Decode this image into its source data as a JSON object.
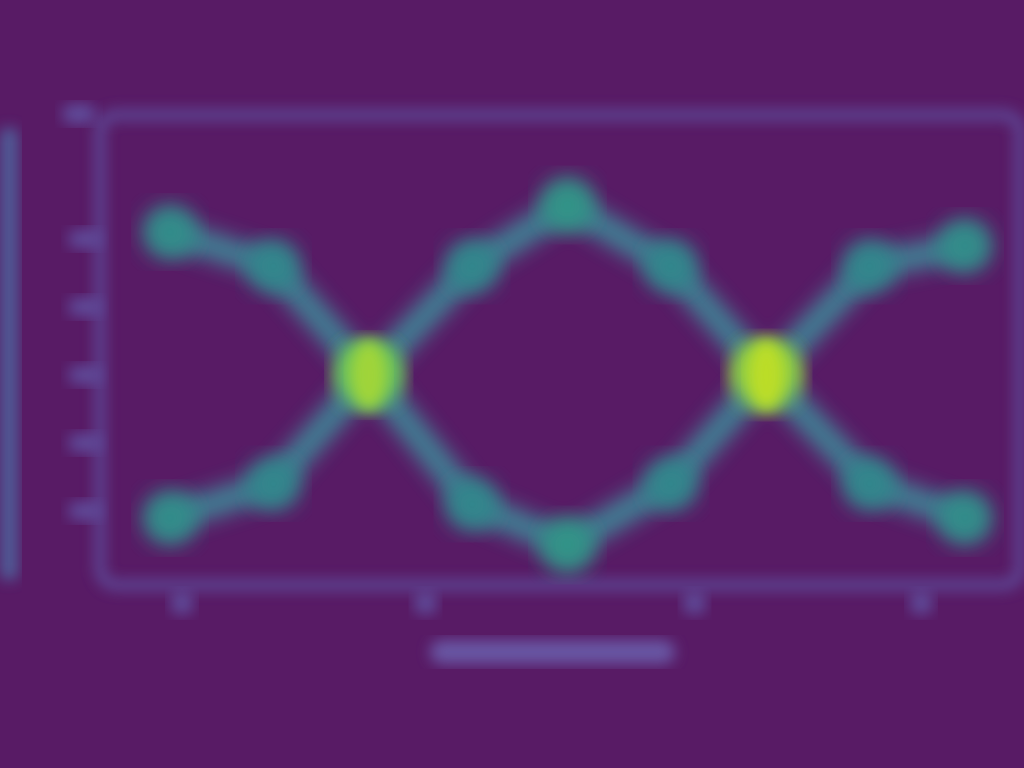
{
  "chart_data": {
    "type": "heatmap",
    "title": "",
    "xlabel": "",
    "ylabel": "",
    "grid": false,
    "legend": "none",
    "colormap": "viridis",
    "background_color": "#581b65",
    "frame_color": "#5f4f9e",
    "series": [
      {
        "points": [
          {
            "x": 0.0,
            "y": 0.92,
            "intensity": 0.55
          },
          {
            "x": 0.13,
            "y": 0.82,
            "intensity": 0.52
          },
          {
            "x": 0.25,
            "y": 0.5,
            "intensity": 0.85
          },
          {
            "x": 0.38,
            "y": 0.82,
            "intensity": 0.52
          },
          {
            "x": 0.5,
            "y": 1.0,
            "intensity": 0.58
          },
          {
            "x": 0.63,
            "y": 0.82,
            "intensity": 0.52
          },
          {
            "x": 0.75,
            "y": 0.5,
            "intensity": 0.92
          },
          {
            "x": 0.88,
            "y": 0.82,
            "intensity": 0.52
          },
          {
            "x": 1.0,
            "y": 0.88,
            "intensity": 0.55
          }
        ]
      },
      {
        "points": [
          {
            "x": 0.0,
            "y": 0.08,
            "intensity": 0.55
          },
          {
            "x": 0.13,
            "y": 0.18,
            "intensity": 0.52
          },
          {
            "x": 0.25,
            "y": 0.5,
            "intensity": 0.85
          },
          {
            "x": 0.38,
            "y": 0.12,
            "intensity": 0.52
          },
          {
            "x": 0.5,
            "y": 0.0,
            "intensity": 0.58
          },
          {
            "x": 0.63,
            "y": 0.18,
            "intensity": 0.52
          },
          {
            "x": 0.75,
            "y": 0.5,
            "intensity": 0.92
          },
          {
            "x": 0.88,
            "y": 0.18,
            "intensity": 0.52
          },
          {
            "x": 1.0,
            "y": 0.08,
            "intensity": 0.55
          }
        ]
      }
    ],
    "x_ticks": [
      0.05,
      0.34,
      0.66,
      0.93
    ],
    "y_ticks": [
      0.1,
      0.3,
      0.5,
      0.7,
      0.9
    ]
  }
}
